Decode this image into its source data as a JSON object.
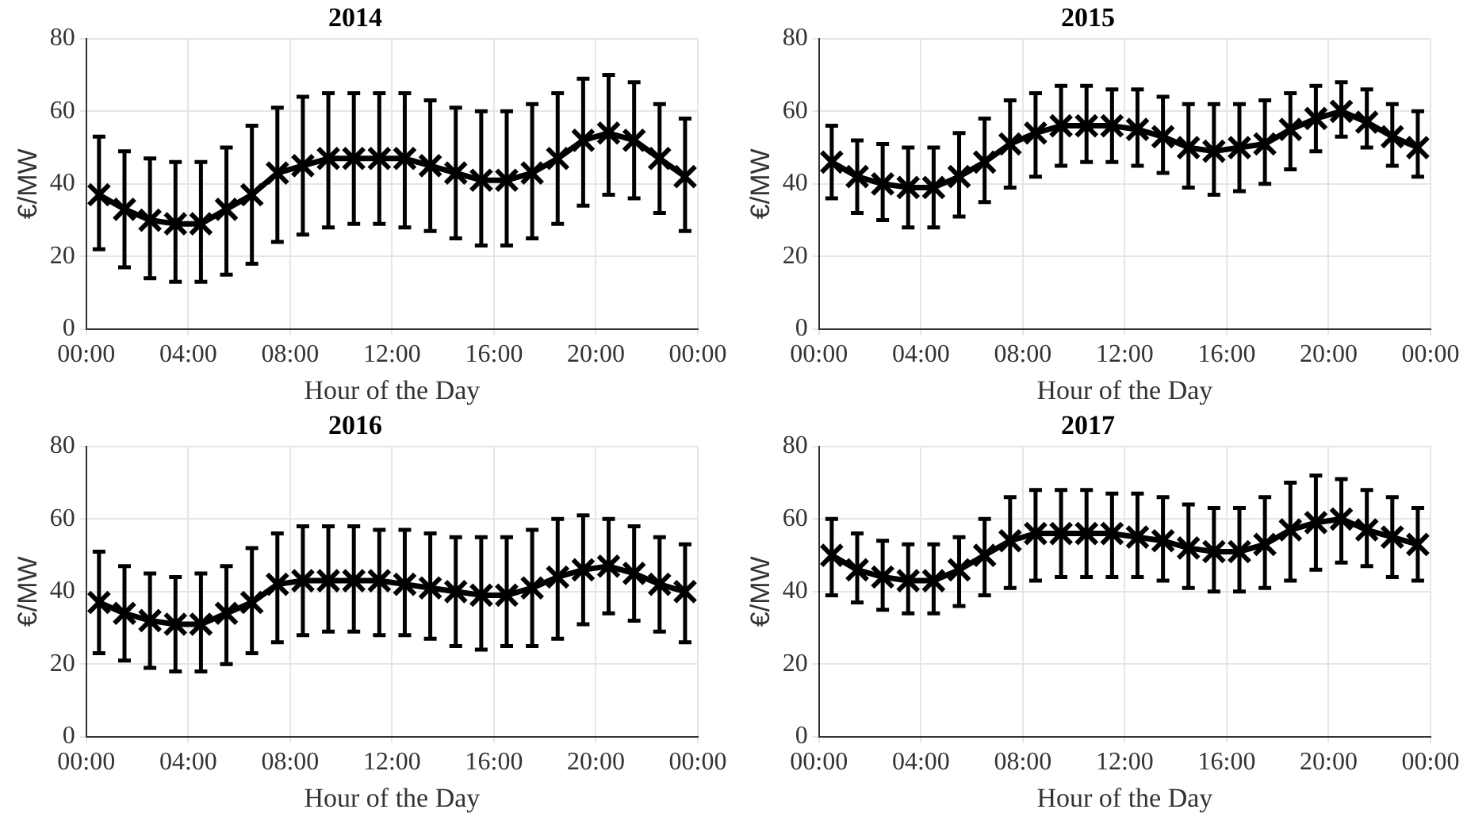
{
  "chart_data": [
    {
      "type": "line",
      "title": "2014",
      "xlabel": "Hour of the Day",
      "ylabel": "€/MW",
      "x": [
        0.5,
        1.5,
        2.5,
        3.5,
        4.5,
        5.5,
        6.5,
        7.5,
        8.5,
        9.5,
        10.5,
        11.5,
        12.5,
        13.5,
        14.5,
        15.5,
        16.5,
        17.5,
        18.5,
        19.5,
        20.5,
        21.5,
        22.5,
        23.5
      ],
      "xlim": [
        0,
        24
      ],
      "xticks": [
        {
          "value": 0,
          "label": "00:00"
        },
        {
          "value": 4,
          "label": "04:00"
        },
        {
          "value": 8,
          "label": "08:00"
        },
        {
          "value": 12,
          "label": "12:00"
        },
        {
          "value": 16,
          "label": "16:00"
        },
        {
          "value": 20,
          "label": "20:00"
        },
        {
          "value": 24,
          "label": "00:00"
        }
      ],
      "ylim": [
        0,
        80
      ],
      "yticks": [
        0,
        20,
        40,
        60,
        80
      ],
      "grid": true,
      "marker": "cross",
      "line_style": "solid",
      "series": [
        {
          "color": "#000000",
          "values": [
            37,
            33,
            30,
            29,
            29,
            33,
            37,
            43,
            45,
            47,
            47,
            47,
            47,
            45,
            43,
            41,
            41,
            43,
            47,
            52,
            54,
            52,
            47,
            42
          ],
          "errors": [
            [
              22,
              53
            ],
            [
              17,
              49
            ],
            [
              14,
              47
            ],
            [
              13,
              46
            ],
            [
              13,
              46
            ],
            [
              15,
              50
            ],
            [
              18,
              56
            ],
            [
              24,
              61
            ],
            [
              26,
              64
            ],
            [
              28,
              65
            ],
            [
              29,
              65
            ],
            [
              29,
              65
            ],
            [
              28,
              65
            ],
            [
              27,
              63
            ],
            [
              25,
              61
            ],
            [
              23,
              60
            ],
            [
              23,
              60
            ],
            [
              25,
              62
            ],
            [
              29,
              65
            ],
            [
              34,
              69
            ],
            [
              37,
              70
            ],
            [
              36,
              68
            ],
            [
              32,
              62
            ],
            [
              27,
              58
            ]
          ]
        }
      ]
    },
    {
      "type": "line",
      "title": "2015",
      "xlabel": "Hour of the Day",
      "ylabel": "€/MW",
      "x": [
        0.5,
        1.5,
        2.5,
        3.5,
        4.5,
        5.5,
        6.5,
        7.5,
        8.5,
        9.5,
        10.5,
        11.5,
        12.5,
        13.5,
        14.5,
        15.5,
        16.5,
        17.5,
        18.5,
        19.5,
        20.5,
        21.5,
        22.5,
        23.5
      ],
      "xlim": [
        0,
        24
      ],
      "xticks": [
        {
          "value": 0,
          "label": "00:00"
        },
        {
          "value": 4,
          "label": "04:00"
        },
        {
          "value": 8,
          "label": "08:00"
        },
        {
          "value": 12,
          "label": "12:00"
        },
        {
          "value": 16,
          "label": "16:00"
        },
        {
          "value": 20,
          "label": "20:00"
        },
        {
          "value": 24,
          "label": "00:00"
        }
      ],
      "ylim": [
        0,
        80
      ],
      "yticks": [
        0,
        20,
        40,
        60,
        80
      ],
      "grid": true,
      "marker": "cross",
      "line_style": "solid",
      "series": [
        {
          "color": "#000000",
          "values": [
            46,
            42,
            40,
            39,
            39,
            42,
            46,
            51,
            54,
            56,
            56,
            56,
            55,
            53,
            50,
            49,
            50,
            51,
            55,
            58,
            60,
            57,
            53,
            50
          ],
          "errors": [
            [
              36,
              56
            ],
            [
              32,
              52
            ],
            [
              30,
              51
            ],
            [
              28,
              50
            ],
            [
              28,
              50
            ],
            [
              31,
              54
            ],
            [
              35,
              58
            ],
            [
              39,
              63
            ],
            [
              42,
              65
            ],
            [
              45,
              67
            ],
            [
              46,
              67
            ],
            [
              46,
              66
            ],
            [
              45,
              66
            ],
            [
              43,
              64
            ],
            [
              39,
              62
            ],
            [
              37,
              62
            ],
            [
              38,
              62
            ],
            [
              40,
              63
            ],
            [
              44,
              65
            ],
            [
              49,
              67
            ],
            [
              53,
              68
            ],
            [
              50,
              66
            ],
            [
              45,
              62
            ],
            [
              42,
              60
            ]
          ]
        }
      ]
    },
    {
      "type": "line",
      "title": "2016",
      "xlabel": "Hour of the Day",
      "ylabel": "€/MW",
      "x": [
        0.5,
        1.5,
        2.5,
        3.5,
        4.5,
        5.5,
        6.5,
        7.5,
        8.5,
        9.5,
        10.5,
        11.5,
        12.5,
        13.5,
        14.5,
        15.5,
        16.5,
        17.5,
        18.5,
        19.5,
        20.5,
        21.5,
        22.5,
        23.5
      ],
      "xlim": [
        0,
        24
      ],
      "xticks": [
        {
          "value": 0,
          "label": "00:00"
        },
        {
          "value": 4,
          "label": "04:00"
        },
        {
          "value": 8,
          "label": "08:00"
        },
        {
          "value": 12,
          "label": "12:00"
        },
        {
          "value": 16,
          "label": "16:00"
        },
        {
          "value": 20,
          "label": "20:00"
        },
        {
          "value": 24,
          "label": "00:00"
        }
      ],
      "ylim": [
        0,
        80
      ],
      "yticks": [
        0,
        20,
        40,
        60,
        80
      ],
      "grid": true,
      "marker": "cross",
      "line_style": "solid",
      "series": [
        {
          "color": "#000000",
          "values": [
            37,
            34,
            32,
            31,
            31,
            34,
            37,
            42,
            43,
            43,
            43,
            43,
            42,
            41,
            40,
            39,
            39,
            41,
            44,
            46,
            47,
            45,
            42,
            40
          ],
          "errors": [
            [
              23,
              51
            ],
            [
              21,
              47
            ],
            [
              19,
              45
            ],
            [
              18,
              44
            ],
            [
              18,
              45
            ],
            [
              20,
              47
            ],
            [
              23,
              52
            ],
            [
              26,
              56
            ],
            [
              28,
              58
            ],
            [
              29,
              58
            ],
            [
              29,
              58
            ],
            [
              28,
              57
            ],
            [
              28,
              57
            ],
            [
              27,
              56
            ],
            [
              25,
              55
            ],
            [
              24,
              55
            ],
            [
              25,
              55
            ],
            [
              25,
              57
            ],
            [
              27,
              60
            ],
            [
              31,
              61
            ],
            [
              34,
              60
            ],
            [
              32,
              58
            ],
            [
              29,
              55
            ],
            [
              26,
              53
            ]
          ]
        }
      ]
    },
    {
      "type": "line",
      "title": "2017",
      "xlabel": "Hour of the Day",
      "ylabel": "€/MW",
      "x": [
        0.5,
        1.5,
        2.5,
        3.5,
        4.5,
        5.5,
        6.5,
        7.5,
        8.5,
        9.5,
        10.5,
        11.5,
        12.5,
        13.5,
        14.5,
        15.5,
        16.5,
        17.5,
        18.5,
        19.5,
        20.5,
        21.5,
        22.5,
        23.5
      ],
      "xlim": [
        0,
        24
      ],
      "xticks": [
        {
          "value": 0,
          "label": "00:00"
        },
        {
          "value": 4,
          "label": "04:00"
        },
        {
          "value": 8,
          "label": "08:00"
        },
        {
          "value": 12,
          "label": "12:00"
        },
        {
          "value": 16,
          "label": "16:00"
        },
        {
          "value": 20,
          "label": "20:00"
        },
        {
          "value": 24,
          "label": "00:00"
        }
      ],
      "ylim": [
        0,
        80
      ],
      "yticks": [
        0,
        20,
        40,
        60,
        80
      ],
      "grid": true,
      "marker": "cross",
      "line_style": "solid",
      "series": [
        {
          "color": "#000000",
          "values": [
            50,
            46,
            44,
            43,
            43,
            46,
            50,
            54,
            56,
            56,
            56,
            56,
            55,
            54,
            52,
            51,
            51,
            53,
            57,
            59,
            60,
            57,
            55,
            53
          ],
          "errors": [
            [
              39,
              60
            ],
            [
              37,
              56
            ],
            [
              35,
              54
            ],
            [
              34,
              53
            ],
            [
              34,
              53
            ],
            [
              36,
              55
            ],
            [
              39,
              60
            ],
            [
              41,
              66
            ],
            [
              43,
              68
            ],
            [
              44,
              68
            ],
            [
              44,
              68
            ],
            [
              44,
              67
            ],
            [
              44,
              67
            ],
            [
              43,
              66
            ],
            [
              41,
              64
            ],
            [
              40,
              63
            ],
            [
              40,
              63
            ],
            [
              41,
              66
            ],
            [
              43,
              70
            ],
            [
              46,
              72
            ],
            [
              48,
              71
            ],
            [
              47,
              68
            ],
            [
              44,
              66
            ],
            [
              43,
              63
            ]
          ]
        }
      ]
    }
  ]
}
